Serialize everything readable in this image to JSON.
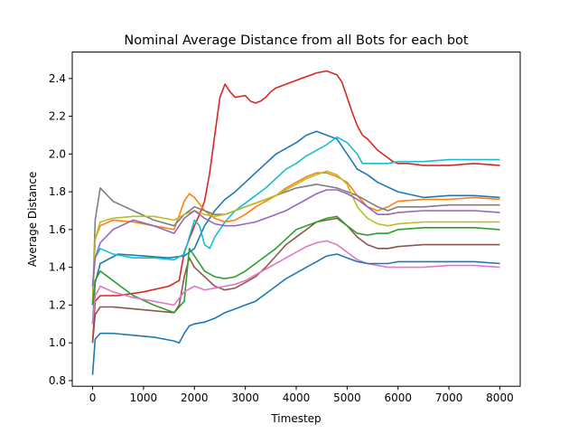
{
  "chart_data": {
    "type": "line",
    "title": "Nominal Average Distance from all Bots for each bot",
    "xlabel": "Timestep",
    "ylabel": "Average Distance",
    "xlim": [
      -400,
      8400
    ],
    "ylim": [
      0.77,
      2.54
    ],
    "xticks": [
      0,
      1000,
      2000,
      3000,
      4000,
      5000,
      6000,
      7000,
      8000
    ],
    "yticks": [
      0.8,
      1.0,
      1.2,
      1.4,
      1.6,
      1.8,
      2.0,
      2.2,
      2.4
    ],
    "xtick_labels": [
      "0",
      "1000",
      "2000",
      "3000",
      "4000",
      "5000",
      "6000",
      "7000",
      "8000"
    ],
    "ytick_labels": [
      "0.8",
      "1.0",
      "1.2",
      "1.4",
      "1.6",
      "1.8",
      "2.0",
      "2.2",
      "2.4"
    ],
    "grid": false,
    "legend": "none",
    "series": [
      {
        "color": "#d62728",
        "x": [
          0,
          50,
          150,
          500,
          1000,
          1500,
          1700,
          1800,
          1900,
          2000,
          2100,
          2200,
          2300,
          2400,
          2500,
          2600,
          2700,
          2800,
          3000,
          3100,
          3200,
          3300,
          3400,
          3500,
          3600,
          3700,
          3800,
          3900,
          4000,
          4100,
          4200,
          4300,
          4400,
          4600,
          4800,
          4900,
          5000,
          5100,
          5200,
          5300,
          5400,
          5500,
          5600,
          5700,
          5800,
          5900,
          6000,
          6200,
          6500,
          7000,
          7500,
          8000
        ],
        "y": [
          1.0,
          1.22,
          1.25,
          1.25,
          1.27,
          1.3,
          1.33,
          1.48,
          1.55,
          1.62,
          1.68,
          1.75,
          1.9,
          2.1,
          2.3,
          2.37,
          2.33,
          2.3,
          2.31,
          2.28,
          2.27,
          2.28,
          2.3,
          2.33,
          2.35,
          2.36,
          2.37,
          2.38,
          2.39,
          2.4,
          2.41,
          2.42,
          2.43,
          2.44,
          2.42,
          2.38,
          2.3,
          2.22,
          2.15,
          2.1,
          2.08,
          2.05,
          2.02,
          2.0,
          1.98,
          1.96,
          1.95,
          1.95,
          1.94,
          1.94,
          1.95,
          1.94
        ]
      },
      {
        "color": "#1f77b4",
        "x": [
          0,
          50,
          150,
          500,
          1000,
          1500,
          1800,
          2000,
          2200,
          2400,
          2600,
          2800,
          3000,
          3200,
          3400,
          3600,
          3800,
          4000,
          4200,
          4400,
          4600,
          4800,
          5000,
          5200,
          5400,
          5600,
          6000,
          6500,
          7000,
          7500,
          8000
        ],
        "y": [
          1.1,
          1.32,
          1.42,
          1.47,
          1.46,
          1.45,
          1.46,
          1.5,
          1.62,
          1.7,
          1.76,
          1.8,
          1.85,
          1.9,
          1.95,
          2.0,
          2.03,
          2.06,
          2.1,
          2.12,
          2.1,
          2.08,
          2.0,
          1.92,
          1.89,
          1.85,
          1.8,
          1.77,
          1.78,
          1.78,
          1.77
        ]
      },
      {
        "color": "#17becf",
        "x": [
          0,
          50,
          150,
          400,
          800,
          1200,
          1600,
          1800,
          2000,
          2100,
          2200,
          2300,
          2400,
          2600,
          2800,
          3000,
          3200,
          3400,
          3600,
          3800,
          4000,
          4200,
          4400,
          4600,
          4800,
          5000,
          5200,
          5300,
          5500,
          5800,
          6000,
          6500,
          7000,
          7500,
          8000
        ],
        "y": [
          1.3,
          1.45,
          1.5,
          1.47,
          1.45,
          1.45,
          1.44,
          1.47,
          1.65,
          1.62,
          1.52,
          1.5,
          1.56,
          1.64,
          1.7,
          1.74,
          1.78,
          1.82,
          1.87,
          1.92,
          1.95,
          1.99,
          2.02,
          2.05,
          2.09,
          2.06,
          2.0,
          1.95,
          1.95,
          1.95,
          1.96,
          1.96,
          1.97,
          1.97,
          1.97
        ]
      },
      {
        "color": "#ff7f0e",
        "x": [
          0,
          50,
          150,
          400,
          800,
          1200,
          1600,
          1800,
          1900,
          2000,
          2200,
          2400,
          2600,
          2800,
          3000,
          3200,
          3400,
          3600,
          3800,
          4000,
          4200,
          4400,
          4600,
          4800,
          5000,
          5200,
          5400,
          5600,
          5800,
          6000,
          6500,
          7000,
          7500,
          8000
        ],
        "y": [
          1.2,
          1.55,
          1.62,
          1.65,
          1.64,
          1.62,
          1.6,
          1.75,
          1.79,
          1.77,
          1.7,
          1.66,
          1.64,
          1.65,
          1.68,
          1.72,
          1.75,
          1.78,
          1.82,
          1.85,
          1.88,
          1.9,
          1.9,
          1.88,
          1.85,
          1.78,
          1.72,
          1.7,
          1.72,
          1.75,
          1.76,
          1.76,
          1.77,
          1.76
        ]
      },
      {
        "color": "#7f7f7f",
        "x": [
          0,
          50,
          150,
          400,
          800,
          1200,
          1600,
          1800,
          2000,
          2200,
          2400,
          2600,
          2800,
          3000,
          3200,
          3400,
          3600,
          3800,
          4000,
          4200,
          4400,
          4600,
          4800,
          5000,
          5200,
          5400,
          5600,
          5800,
          6000,
          6500,
          7000,
          7500,
          8000
        ],
        "y": [
          1.2,
          1.65,
          1.82,
          1.75,
          1.7,
          1.65,
          1.62,
          1.68,
          1.72,
          1.7,
          1.68,
          1.68,
          1.7,
          1.72,
          1.74,
          1.76,
          1.78,
          1.8,
          1.82,
          1.83,
          1.84,
          1.83,
          1.82,
          1.8,
          1.78,
          1.75,
          1.72,
          1.7,
          1.72,
          1.72,
          1.73,
          1.73,
          1.73
        ]
      },
      {
        "color": "#bcbd22",
        "x": [
          0,
          50,
          150,
          400,
          800,
          1200,
          1600,
          1800,
          2000,
          2200,
          2400,
          2600,
          2800,
          3000,
          3200,
          3400,
          3600,
          3800,
          4000,
          4200,
          4400,
          4600,
          4800,
          5000,
          5200,
          5400,
          5600,
          5800,
          6000,
          6500,
          7000,
          7500,
          8000
        ],
        "y": [
          1.2,
          1.55,
          1.64,
          1.66,
          1.67,
          1.67,
          1.65,
          1.68,
          1.7,
          1.68,
          1.67,
          1.68,
          1.7,
          1.72,
          1.74,
          1.76,
          1.78,
          1.81,
          1.84,
          1.87,
          1.89,
          1.91,
          1.89,
          1.84,
          1.72,
          1.66,
          1.63,
          1.62,
          1.63,
          1.64,
          1.64,
          1.64,
          1.64
        ]
      },
      {
        "color": "#9467bd",
        "x": [
          0,
          50,
          150,
          400,
          800,
          1200,
          1600,
          1800,
          2000,
          2200,
          2400,
          2600,
          2800,
          3000,
          3200,
          3400,
          3600,
          3800,
          4000,
          4200,
          4400,
          4600,
          4800,
          5000,
          5200,
          5400,
          5600,
          5800,
          6000,
          6500,
          7000,
          7500,
          8000
        ],
        "y": [
          1.3,
          1.45,
          1.53,
          1.6,
          1.65,
          1.62,
          1.58,
          1.66,
          1.7,
          1.66,
          1.63,
          1.62,
          1.62,
          1.63,
          1.64,
          1.66,
          1.68,
          1.7,
          1.73,
          1.76,
          1.79,
          1.81,
          1.81,
          1.79,
          1.76,
          1.72,
          1.68,
          1.68,
          1.69,
          1.7,
          1.7,
          1.7,
          1.69
        ]
      },
      {
        "color": "#8c564b",
        "x": [
          0,
          50,
          150,
          400,
          800,
          1200,
          1600,
          1700,
          1800,
          1900,
          2000,
          2200,
          2400,
          2600,
          2800,
          3000,
          3200,
          3400,
          3600,
          3800,
          4000,
          4200,
          4400,
          4600,
          4800,
          5000,
          5200,
          5400,
          5600,
          5800,
          6000,
          6500,
          7000,
          7500,
          8000
        ],
        "y": [
          1.0,
          1.15,
          1.19,
          1.19,
          1.18,
          1.17,
          1.16,
          1.2,
          1.35,
          1.45,
          1.4,
          1.35,
          1.3,
          1.28,
          1.29,
          1.32,
          1.35,
          1.4,
          1.46,
          1.52,
          1.56,
          1.6,
          1.64,
          1.65,
          1.66,
          1.62,
          1.56,
          1.52,
          1.5,
          1.5,
          1.51,
          1.52,
          1.52,
          1.52,
          1.52
        ]
      },
      {
        "color": "#2ca02c",
        "x": [
          0,
          50,
          150,
          400,
          800,
          1200,
          1600,
          1800,
          1900,
          2000,
          2200,
          2400,
          2600,
          2800,
          3000,
          3200,
          3400,
          3600,
          3800,
          4000,
          4200,
          4400,
          4600,
          4800,
          5000,
          5200,
          5400,
          5600,
          5800,
          6000,
          6500,
          7000,
          7500,
          8000
        ],
        "y": [
          1.2,
          1.33,
          1.38,
          1.33,
          1.25,
          1.2,
          1.16,
          1.22,
          1.5,
          1.46,
          1.38,
          1.35,
          1.34,
          1.35,
          1.38,
          1.42,
          1.46,
          1.5,
          1.55,
          1.6,
          1.62,
          1.64,
          1.66,
          1.67,
          1.62,
          1.58,
          1.57,
          1.58,
          1.58,
          1.6,
          1.61,
          1.61,
          1.61,
          1.6
        ]
      },
      {
        "color": "#e377c2",
        "x": [
          0,
          50,
          150,
          400,
          800,
          1200,
          1600,
          1800,
          2000,
          2200,
          2400,
          2600,
          2800,
          3000,
          3200,
          3400,
          3600,
          3800,
          4000,
          4200,
          4400,
          4600,
          4800,
          5000,
          5200,
          5400,
          5600,
          5800,
          6000,
          6500,
          7000,
          7500,
          8000
        ],
        "y": [
          1.1,
          1.25,
          1.3,
          1.27,
          1.24,
          1.22,
          1.2,
          1.27,
          1.3,
          1.28,
          1.29,
          1.3,
          1.31,
          1.33,
          1.36,
          1.39,
          1.42,
          1.45,
          1.48,
          1.51,
          1.53,
          1.54,
          1.52,
          1.48,
          1.44,
          1.42,
          1.41,
          1.4,
          1.4,
          1.4,
          1.41,
          1.41,
          1.4
        ]
      },
      {
        "color": "#1f77b4",
        "x": [
          0,
          50,
          150,
          400,
          800,
          1200,
          1600,
          1700,
          1800,
          1900,
          2000,
          2200,
          2400,
          2600,
          2800,
          3000,
          3200,
          3400,
          3600,
          3800,
          4000,
          4200,
          4400,
          4600,
          4800,
          5000,
          5200,
          5400,
          5600,
          5800,
          6000,
          6500,
          7000,
          7500,
          8000
        ],
        "y": [
          0.83,
          1.02,
          1.05,
          1.05,
          1.04,
          1.03,
          1.01,
          1.0,
          1.05,
          1.09,
          1.1,
          1.11,
          1.13,
          1.16,
          1.18,
          1.2,
          1.22,
          1.26,
          1.3,
          1.34,
          1.37,
          1.4,
          1.43,
          1.46,
          1.47,
          1.45,
          1.43,
          1.42,
          1.42,
          1.42,
          1.43,
          1.43,
          1.43,
          1.43,
          1.42
        ]
      }
    ]
  }
}
